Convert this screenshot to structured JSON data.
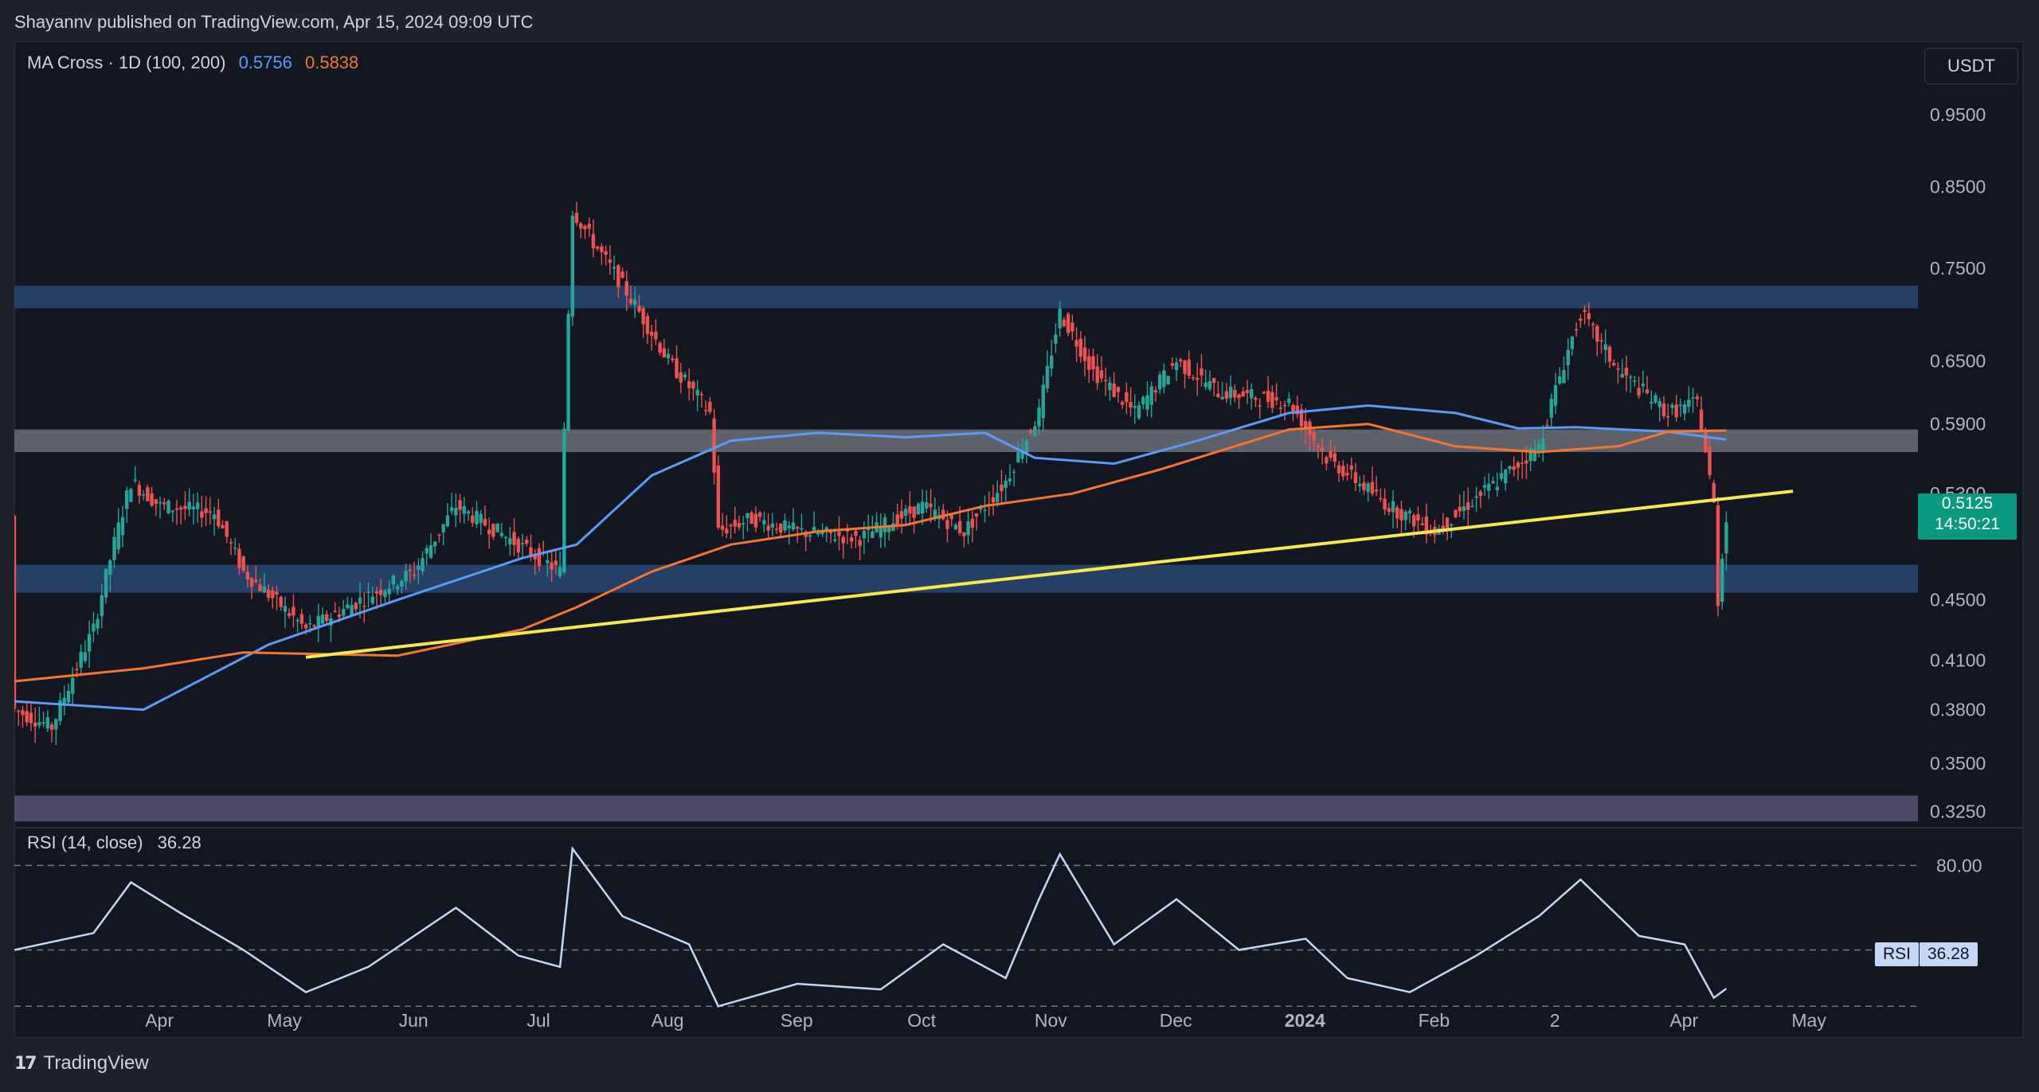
{
  "header": {
    "publish_text": "Shayannv published on TradingView.com, Apr 15, 2024 09:09 UTC"
  },
  "ma_indicator": {
    "label": "MA Cross · 1D (100, 200)",
    "value_fast": "0.5756",
    "value_slow": "0.5838",
    "color_fast": "#5b9cf6",
    "color_slow": "#f7752d"
  },
  "rsi_indicator": {
    "label": "RSI (14, close)",
    "value": "36.28",
    "badge_name": "RSI",
    "badge_value": "36.28",
    "color": "#c4d7f5"
  },
  "currency_button": {
    "label": "USDT"
  },
  "last_price": {
    "price": "0.5125",
    "countdown": "14:50:21",
    "color": "#089981"
  },
  "footer": {
    "brand": "TradingView"
  },
  "colors": {
    "background": "#131722",
    "up": "#26a69a",
    "down": "#ef5350",
    "trendline": "#f5e94b"
  },
  "chart_data": {
    "type": "line",
    "title": "",
    "price_axis": {
      "scale": "log",
      "range": [
        0.32,
        1.0
      ],
      "tick_labels": [
        "0.9500",
        "0.8500",
        "0.7500",
        "0.6500",
        "0.5900",
        "0.5300",
        "0.4500",
        "0.4100",
        "0.3800",
        "0.3500",
        "0.3250"
      ]
    },
    "time_axis": {
      "labels": [
        "Apr",
        "May",
        "Jun",
        "Jul",
        "Aug",
        "Sep",
        "Oct",
        "Nov",
        "Dec",
        "2024",
        "Feb",
        "2",
        "Apr",
        "May"
      ],
      "range": [
        "2023-03-01",
        "2024-05-31"
      ]
    },
    "zones": [
      {
        "name": "resistance",
        "low": 0.705,
        "high": 0.73,
        "color": "#2a4670"
      },
      {
        "name": "mid",
        "low": 0.565,
        "high": 0.585,
        "color": "#6b6f79"
      },
      {
        "name": "support",
        "low": 0.455,
        "high": 0.475,
        "color": "#2a4670"
      },
      {
        "name": "bottom",
        "low": 0.32,
        "high": 0.333,
        "color": "#5c5475"
      }
    ],
    "trendline": {
      "points": [
        [
          "2023-05-10",
          0.412
        ],
        [
          "2024-05-01",
          0.532
        ]
      ],
      "color": "#f5e94b"
    },
    "series": [
      {
        "name": "MA 100",
        "color": "#5b9cf6",
        "points": [
          [
            "2023-03-01",
            0.385
          ],
          [
            "2023-04-01",
            0.38
          ],
          [
            "2023-05-01",
            0.42
          ],
          [
            "2023-06-01",
            0.45
          ],
          [
            "2023-07-01",
            0.48
          ],
          [
            "2023-07-14",
            0.49
          ],
          [
            "2023-08-01",
            0.545
          ],
          [
            "2023-08-20",
            0.575
          ],
          [
            "2023-09-10",
            0.582
          ],
          [
            "2023-10-01",
            0.578
          ],
          [
            "2023-10-20",
            0.582
          ],
          [
            "2023-11-01",
            0.56
          ],
          [
            "2023-11-20",
            0.555
          ],
          [
            "2023-12-10",
            0.575
          ],
          [
            "2024-01-01",
            0.6
          ],
          [
            "2024-01-20",
            0.607
          ],
          [
            "2024-02-10",
            0.6
          ],
          [
            "2024-02-25",
            0.586
          ],
          [
            "2024-03-10",
            0.587
          ],
          [
            "2024-04-01",
            0.583
          ],
          [
            "2024-04-15",
            0.576
          ]
        ]
      },
      {
        "name": "MA 200",
        "color": "#f7752d",
        "points": [
          [
            "2023-03-01",
            0.397
          ],
          [
            "2023-04-01",
            0.405
          ],
          [
            "2023-04-25",
            0.415
          ],
          [
            "2023-06-01",
            0.413
          ],
          [
            "2023-07-01",
            0.43
          ],
          [
            "2023-07-14",
            0.445
          ],
          [
            "2023-08-01",
            0.47
          ],
          [
            "2023-08-20",
            0.49
          ],
          [
            "2023-09-10",
            0.5
          ],
          [
            "2023-10-01",
            0.505
          ],
          [
            "2023-10-20",
            0.52
          ],
          [
            "2023-11-10",
            0.53
          ],
          [
            "2023-12-01",
            0.55
          ],
          [
            "2024-01-01",
            0.585
          ],
          [
            "2024-01-20",
            0.59
          ],
          [
            "2024-02-10",
            0.57
          ],
          [
            "2024-03-01",
            0.565
          ],
          [
            "2024-03-20",
            0.57
          ],
          [
            "2024-04-01",
            0.583
          ],
          [
            "2024-04-15",
            0.584
          ]
        ]
      },
      {
        "name": "Price",
        "color": "#26a69a",
        "points": [
          [
            "2023-03-01",
            0.38
          ],
          [
            "2023-03-10",
            0.37
          ],
          [
            "2023-03-20",
            0.43
          ],
          [
            "2023-03-29",
            0.54
          ],
          [
            "2023-04-05",
            0.52
          ],
          [
            "2023-04-18",
            0.515
          ],
          [
            "2023-04-25",
            0.47
          ],
          [
            "2023-05-10",
            0.43
          ],
          [
            "2023-05-20",
            0.445
          ],
          [
            "2023-06-05",
            0.47
          ],
          [
            "2023-06-15",
            0.52
          ],
          [
            "2023-06-30",
            0.49
          ],
          [
            "2023-07-10",
            0.47
          ],
          [
            "2023-07-13",
            0.82
          ],
          [
            "2023-07-18",
            0.78
          ],
          [
            "2023-07-25",
            0.73
          ],
          [
            "2023-08-05",
            0.65
          ],
          [
            "2023-08-15",
            0.6
          ],
          [
            "2023-08-17",
            0.5
          ],
          [
            "2023-08-25",
            0.51
          ],
          [
            "2023-09-05",
            0.5
          ],
          [
            "2023-09-20",
            0.495
          ],
          [
            "2023-10-05",
            0.52
          ],
          [
            "2023-10-15",
            0.5
          ],
          [
            "2023-10-25",
            0.54
          ],
          [
            "2023-11-02",
            0.6
          ],
          [
            "2023-11-07",
            0.7
          ],
          [
            "2023-11-15",
            0.64
          ],
          [
            "2023-11-25",
            0.6
          ],
          [
            "2023-12-05",
            0.65
          ],
          [
            "2023-12-15",
            0.62
          ],
          [
            "2024-01-01",
            0.61
          ],
          [
            "2024-01-10",
            0.56
          ],
          [
            "2024-01-25",
            0.52
          ],
          [
            "2024-02-05",
            0.5
          ],
          [
            "2024-02-20",
            0.54
          ],
          [
            "2024-03-01",
            0.57
          ],
          [
            "2024-03-11",
            0.7
          ],
          [
            "2024-03-20",
            0.64
          ],
          [
            "2024-04-01",
            0.6
          ],
          [
            "2024-04-08",
            0.61
          ],
          [
            "2024-04-12",
            0.52
          ],
          [
            "2024-04-13",
            0.45
          ],
          [
            "2024-04-15",
            0.5125
          ]
        ]
      }
    ],
    "rsi": {
      "levels": [
        80,
        50,
        30
      ],
      "tick_labels": [
        "80.00"
      ],
      "range": [
        25,
        90
      ],
      "points": [
        [
          "2023-03-01",
          50
        ],
        [
          "2023-03-20",
          56
        ],
        [
          "2023-03-29",
          74
        ],
        [
          "2023-04-10",
          63
        ],
        [
          "2023-04-25",
          50
        ],
        [
          "2023-05-10",
          35
        ],
        [
          "2023-05-25",
          44
        ],
        [
          "2023-06-15",
          65
        ],
        [
          "2023-06-30",
          48
        ],
        [
          "2023-07-10",
          44
        ],
        [
          "2023-07-13",
          86
        ],
        [
          "2023-07-25",
          62
        ],
        [
          "2023-08-10",
          52
        ],
        [
          "2023-08-17",
          30
        ],
        [
          "2023-09-05",
          38
        ],
        [
          "2023-09-25",
          36
        ],
        [
          "2023-10-10",
          52
        ],
        [
          "2023-10-25",
          40
        ],
        [
          "2023-11-02",
          68
        ],
        [
          "2023-11-07",
          84
        ],
        [
          "2023-11-20",
          52
        ],
        [
          "2023-12-05",
          68
        ],
        [
          "2023-12-20",
          50
        ],
        [
          "2024-01-05",
          54
        ],
        [
          "2024-01-15",
          40
        ],
        [
          "2024-01-30",
          35
        ],
        [
          "2024-02-15",
          48
        ],
        [
          "2024-03-01",
          62
        ],
        [
          "2024-03-11",
          75
        ],
        [
          "2024-03-25",
          55
        ],
        [
          "2024-04-05",
          52
        ],
        [
          "2024-04-12",
          33
        ],
        [
          "2024-04-15",
          36.28
        ]
      ]
    }
  }
}
